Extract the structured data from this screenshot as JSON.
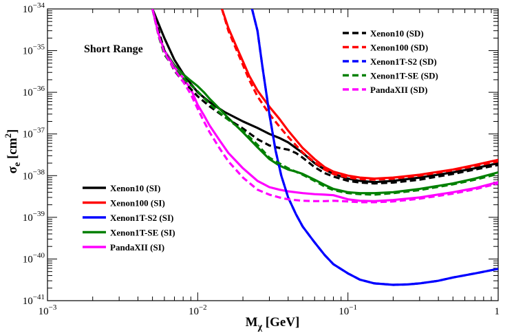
{
  "chart_data": {
    "type": "line",
    "title": "",
    "annotation": "Short Range",
    "xlabel": {
      "main": "M",
      "sub": "χ",
      "rest": " [GeV]"
    },
    "ylabel": {
      "main": "σ",
      "sub": "e",
      "bracket_open": " [cm",
      "sup": "2",
      "bracket_close": "]"
    },
    "x_scale": "log",
    "y_scale": "log",
    "xlim": [
      0.001,
      1
    ],
    "ylim": [
      1e-41,
      1e-34
    ],
    "x_ticks": [
      {
        "value": 0.001,
        "base": "10",
        "exp": "−3"
      },
      {
        "value": 0.01,
        "base": "10",
        "exp": "−2"
      },
      {
        "value": 0.1,
        "base": "10",
        "exp": "−1"
      },
      {
        "value": 1,
        "base": "1",
        "exp": ""
      }
    ],
    "y_ticks": [
      {
        "value": 1e-41,
        "base": "10",
        "exp": "−41"
      },
      {
        "value": 1e-40,
        "base": "10",
        "exp": "−40"
      },
      {
        "value": 1e-39,
        "base": "10",
        "exp": "−39"
      },
      {
        "value": 1e-38,
        "base": "10",
        "exp": "−38"
      },
      {
        "value": 1e-37,
        "base": "10",
        "exp": "−37"
      },
      {
        "value": 1e-36,
        "base": "10",
        "exp": "−36"
      },
      {
        "value": 1e-35,
        "base": "10",
        "exp": "−35"
      },
      {
        "value": 1e-34,
        "base": "10",
        "exp": "−34"
      }
    ],
    "grid": false,
    "legend_placement": [
      "top-right (SD, dashed)",
      "bottom-left (SI, solid)"
    ],
    "series": [
      {
        "name": "Xenon10 (SI)",
        "color": "#000000",
        "style": "solid",
        "legend_group": "SI",
        "x": [
          0.005,
          0.006,
          0.007,
          0.008,
          0.009,
          0.01,
          0.012,
          0.015,
          0.02,
          0.025,
          0.03,
          0.035,
          0.04,
          0.05,
          0.06,
          0.07,
          0.08,
          0.1,
          0.12,
          0.15,
          0.2,
          0.3,
          0.5,
          0.7,
          1.0
        ],
        "y": [
          1e-34,
          2e-35,
          6e-36,
          2.8e-36,
          1.6e-36,
          1e-36,
          5.8e-37,
          3.4e-37,
          2e-37,
          1.4e-37,
          1e-37,
          8e-38,
          6.3e-38,
          3.5e-38,
          2e-38,
          1.4e-38,
          1.1e-38,
          8.5e-39,
          7.5e-39,
          7e-39,
          7.5e-39,
          9e-39,
          1.2e-38,
          1.5e-38,
          2e-38
        ]
      },
      {
        "name": "Xenon100 (SI)",
        "color": "#ff0000",
        "style": "solid",
        "legend_group": "SI",
        "x": [
          0.0145,
          0.016,
          0.018,
          0.02,
          0.022,
          0.025,
          0.03,
          0.035,
          0.04,
          0.05,
          0.06,
          0.07,
          0.08,
          0.1,
          0.12,
          0.15,
          0.2,
          0.3,
          0.5,
          0.7,
          1.0
        ],
        "y": [
          1e-34,
          3.5e-35,
          1.3e-35,
          5.5e-36,
          2.5e-36,
          1.1e-36,
          4.5e-37,
          2.3e-37,
          1.2e-37,
          4.6e-38,
          2.5e-38,
          1.6e-38,
          1.25e-38,
          1e-38,
          9e-39,
          8.5e-39,
          9e-39,
          1.05e-38,
          1.4e-38,
          1.8e-38,
          2.4e-38
        ]
      },
      {
        "name": "Xenon1T-S2 (SI)",
        "color": "#0000ff",
        "style": "solid",
        "legend_group": "SI",
        "x": [
          0.023,
          0.025,
          0.027,
          0.03,
          0.033,
          0.036,
          0.04,
          0.045,
          0.05,
          0.06,
          0.07,
          0.08,
          0.1,
          0.12,
          0.15,
          0.2,
          0.25,
          0.3,
          0.4,
          0.5,
          0.7,
          1.0
        ],
        "y": [
          1e-34,
          3e-35,
          4e-36,
          3e-37,
          4e-38,
          1e-38,
          3e-39,
          1.2e-39,
          6e-40,
          2.5e-40,
          1.25e-40,
          7.5e-41,
          4.5e-41,
          3.2e-41,
          2.6e-41,
          2.4e-41,
          2.45e-41,
          2.6e-41,
          3e-41,
          3.6e-41,
          4.5e-41,
          5.8e-41
        ]
      },
      {
        "name": "Xenon1T-SE (SI)",
        "color": "#008000",
        "style": "solid",
        "legend_group": "SI",
        "x": [
          0.005,
          0.0055,
          0.006,
          0.007,
          0.008,
          0.009,
          0.01,
          0.011,
          0.012,
          0.014,
          0.016,
          0.02,
          0.025,
          0.03,
          0.035,
          0.04,
          0.045,
          0.05,
          0.06,
          0.07,
          0.08,
          0.1,
          0.12,
          0.15,
          0.2,
          0.3,
          0.5,
          0.7,
          1.0
        ],
        "y": [
          1e-34,
          2.5e-35,
          1e-35,
          4.5e-36,
          2.7e-36,
          1.9e-36,
          1.4e-36,
          1e-36,
          7e-37,
          4e-37,
          2.4e-37,
          1.1e-37,
          4.8e-38,
          2.5e-38,
          1.75e-38,
          1.4e-38,
          1.25e-38,
          1.1e-38,
          8e-39,
          6e-39,
          4.8e-39,
          4e-39,
          3.8e-39,
          3.8e-39,
          4e-39,
          4.8e-39,
          6.5e-39,
          8.5e-39,
          1.2e-38
        ]
      },
      {
        "name": "PandaXII (SI)",
        "color": "#ff00ff",
        "style": "solid",
        "legend_group": "SI",
        "x": [
          0.005,
          0.0055,
          0.006,
          0.007,
          0.008,
          0.009,
          0.01,
          0.011,
          0.012,
          0.014,
          0.016,
          0.02,
          0.025,
          0.03,
          0.035,
          0.04,
          0.05,
          0.06,
          0.07,
          0.08,
          0.1,
          0.12,
          0.15,
          0.2,
          0.3,
          0.5,
          0.7,
          1.0
        ],
        "y": [
          1e-34,
          2.5e-35,
          1e-35,
          4e-36,
          2.2e-36,
          1.2e-36,
          5e-37,
          2.8e-37,
          1.6e-37,
          7e-38,
          3.5e-38,
          1.5e-38,
          7.5e-39,
          5.3e-39,
          4.6e-39,
          4.2e-39,
          3.8e-39,
          3.6e-39,
          3.5e-39,
          3.4e-39,
          2.7e-39,
          2.5e-39,
          2.45e-39,
          2.6e-39,
          3e-39,
          4e-39,
          5e-39,
          7e-39
        ]
      },
      {
        "name": "Xenon10 (SD)",
        "color": "#000000",
        "style": "dashed",
        "legend_group": "SD",
        "x": [
          0.005,
          0.006,
          0.007,
          0.008,
          0.009,
          0.01,
          0.012,
          0.015,
          0.02,
          0.025,
          0.03,
          0.035,
          0.04,
          0.045,
          0.05,
          0.06,
          0.07,
          0.08,
          0.1,
          0.12,
          0.15,
          0.2,
          0.3,
          0.5,
          0.7,
          1.0
        ],
        "y": [
          1e-34,
          1e-35,
          3.3e-36,
          1.8e-36,
          1.2e-36,
          8e-37,
          4.6e-37,
          2.6e-37,
          1.35e-37,
          7.5e-38,
          5.3e-38,
          4.6e-38,
          4.2e-38,
          3.5e-38,
          2.7e-38,
          1.6e-38,
          1.15e-38,
          9.5e-39,
          7.5e-39,
          6.8e-39,
          6.5e-39,
          6.8e-39,
          8e-39,
          1.1e-38,
          1.4e-38,
          1.8e-38
        ]
      },
      {
        "name": "Xenon100 (SD)",
        "color": "#ff0000",
        "style": "dashed",
        "legend_group": "SD",
        "x": [
          0.0145,
          0.016,
          0.018,
          0.02,
          0.022,
          0.025,
          0.03,
          0.035,
          0.04,
          0.05,
          0.06,
          0.07,
          0.08,
          0.1,
          0.12,
          0.15,
          0.2,
          0.3,
          0.5,
          0.7,
          1.0
        ],
        "y": [
          1e-34,
          3e-35,
          1.1e-35,
          4.5e-36,
          2e-36,
          8e-37,
          3e-37,
          1.5e-37,
          8.5e-38,
          3.6e-38,
          2.1e-38,
          1.4e-38,
          1.1e-38,
          9e-39,
          8.3e-39,
          8e-39,
          8.5e-39,
          1e-38,
          1.35e-38,
          1.7e-38,
          2.2e-38
        ]
      },
      {
        "name": "Xenon1T-S2 (SD)",
        "color": "#0000ff",
        "style": "dashed",
        "legend_group": "SD",
        "x": [
          0.023,
          0.025,
          0.027,
          0.03,
          0.033,
          0.036,
          0.04,
          0.045,
          0.05,
          0.06,
          0.07,
          0.08,
          0.1,
          0.12,
          0.15,
          0.2,
          0.25,
          0.3,
          0.4,
          0.5,
          0.7,
          1.0
        ],
        "y": [
          1e-34,
          3e-35,
          4e-36,
          3e-37,
          4e-38,
          1e-38,
          3e-39,
          1.2e-39,
          6e-40,
          2.5e-40,
          1.25e-40,
          7.5e-41,
          4.5e-41,
          3.2e-41,
          2.6e-41,
          2.4e-41,
          2.45e-41,
          2.6e-41,
          3e-41,
          3.6e-41,
          4.5e-41,
          5.8e-41
        ]
      },
      {
        "name": "Xenon1T-SE (SD)",
        "color": "#008000",
        "style": "dashed",
        "legend_group": "SD",
        "x": [
          0.005,
          0.0055,
          0.006,
          0.007,
          0.008,
          0.009,
          0.01,
          0.012,
          0.015,
          0.02,
          0.025,
          0.03,
          0.04,
          0.05,
          0.06,
          0.07,
          0.08,
          0.1,
          0.12,
          0.15,
          0.2,
          0.3,
          0.5,
          0.7,
          1.0
        ],
        "y": [
          1e-34,
          2.2e-35,
          8e-36,
          3.8e-36,
          2.2e-36,
          1.5e-36,
          1.05e-36,
          5.3e-37,
          2.6e-37,
          1.2e-37,
          5.5e-38,
          2.7e-38,
          1.5e-38,
          1.05e-38,
          7.5e-39,
          5.5e-39,
          4.5e-39,
          3.8e-39,
          3.6e-39,
          3.5e-39,
          3.8e-39,
          4.5e-39,
          6.2e-39,
          8e-39,
          1.1e-38
        ]
      },
      {
        "name": "PandaXII (SD)",
        "color": "#ff00ff",
        "style": "dashed",
        "legend_group": "SD",
        "x": [
          0.005,
          0.0055,
          0.006,
          0.007,
          0.008,
          0.009,
          0.01,
          0.011,
          0.012,
          0.014,
          0.016,
          0.02,
          0.025,
          0.03,
          0.035,
          0.04,
          0.05,
          0.06,
          0.07,
          0.08,
          0.1,
          0.12,
          0.15,
          0.2,
          0.3,
          0.5,
          0.7,
          1.0
        ],
        "y": [
          1e-34,
          2.3e-35,
          9e-36,
          3.5e-36,
          1.8e-36,
          9e-37,
          4e-37,
          2e-37,
          1.1e-37,
          4.5e-38,
          2.2e-38,
          9e-39,
          4.6e-39,
          3.5e-39,
          3e-39,
          2.7e-39,
          2.5e-39,
          2.45e-39,
          2.45e-39,
          2.5e-39,
          2.4e-39,
          2.3e-39,
          2.3e-39,
          2.4e-39,
          2.8e-39,
          3.7e-39,
          4.7e-39,
          6.5e-39
        ]
      }
    ]
  }
}
